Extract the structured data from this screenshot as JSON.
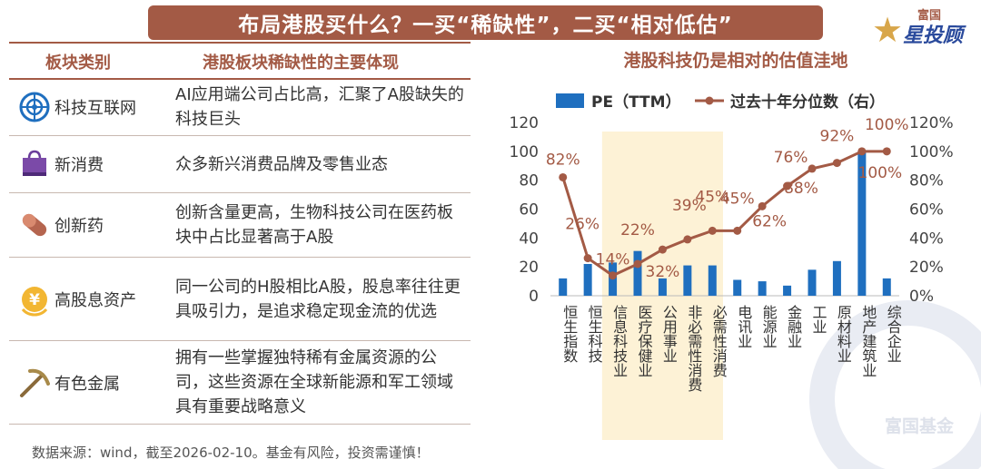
{
  "banner": "布局港股买什么？一买“稀缺性”，二买“相对低估”",
  "logo": {
    "small": "富国",
    "big": "星投顾"
  },
  "table": {
    "header_left": "板块类别",
    "header_right": "港股板块稀缺性的主要体现",
    "rows": [
      {
        "category": "科技互联网",
        "icon": "globe-network-icon",
        "desc": "AI应用端公司占比高，汇聚了A股缺失的科技巨头"
      },
      {
        "category": "新消费",
        "icon": "shopping-bag-icon",
        "desc": "众多新兴消费品牌及零售业态"
      },
      {
        "category": "创新药",
        "icon": "pill-capsule-icon",
        "desc": "创新含量更高，生物科技公司在医药板块中占比显著高于A股"
      },
      {
        "category": "高股息资产",
        "icon": "yuan-coin-icon",
        "desc": "同一公司的H股相比A股，股息率往往更具吸引力，是追求稳定现金流的优选"
      },
      {
        "category": "有色金属",
        "icon": "pickaxe-icon",
        "desc": "拥有一些掌握独特稀有金属资源的公司，这些资源在全球新能源和军工领域具有重要战略意义"
      }
    ]
  },
  "chart_title": "港股科技仍是相对的估值洼地",
  "source": "数据来源：wind，截至2026-02-10。基金有风险，投资需谨慎！",
  "watermark": "富国基金",
  "colors": {
    "bar": "#1f6fbf",
    "line": "#a35a45",
    "highlight": "#fdf2d6",
    "accent": "#a35a45"
  },
  "chart_data": {
    "type": "bar",
    "categories": [
      "恒生指数",
      "恒生科技",
      "信息科技业",
      "医疗保健业",
      "公用事业",
      "非必需性消费",
      "必需性消费",
      "电讯业",
      "能源业",
      "金融业",
      "工业",
      "原材料业",
      "地产建筑业",
      "综合企业"
    ],
    "series": [
      {
        "name": "PE（TTM）",
        "type": "bar",
        "axis": "left",
        "values": [
          12,
          22,
          23,
          31,
          12,
          21,
          21,
          11,
          10,
          7,
          18,
          24,
          100,
          12
        ]
      },
      {
        "name": "过去十年分位数（右）",
        "type": "line",
        "axis": "right",
        "values": [
          82,
          26,
          14,
          22,
          32,
          39,
          45,
          45,
          62,
          76,
          88,
          92,
          100,
          100
        ],
        "labels": [
          "82%",
          "26%",
          "14%",
          "22%",
          "32%",
          "39%",
          "45%",
          "45%",
          "62%",
          "76%",
          "88%",
          "92%",
          "100%",
          "100%"
        ]
      }
    ],
    "ylim": [
      0,
      120
    ],
    "yticks": [
      "0",
      "20",
      "40",
      "60",
      "80",
      "100",
      "120"
    ],
    "y2lim": [
      0,
      120
    ],
    "y2ticks": [
      "0%",
      "20%",
      "40%",
      "60%",
      "80%",
      "100%",
      "120%"
    ],
    "highlight_categories": [
      "信息科技业",
      "医疗保健业",
      "公用事业",
      "非必需性消费",
      "必需性消费"
    ],
    "legend_position": "top",
    "grid": false
  }
}
